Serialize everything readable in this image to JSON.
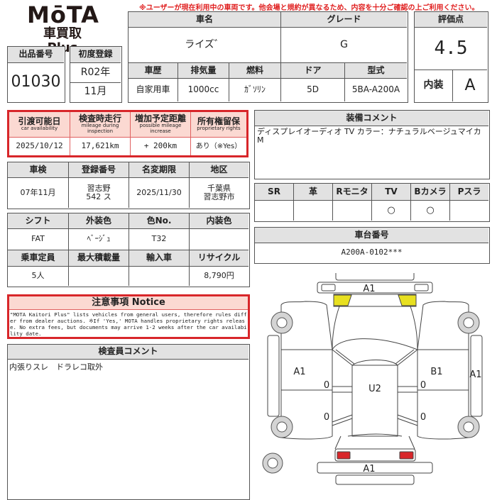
{
  "logo": {
    "brand": "MōTA",
    "sub": "車買取 Plus"
  },
  "warning": "※ユーザーが現在利用中の車両です。他会場と規約が異なるため、内容を十分ご確認の上ご利用ください。",
  "listing": {
    "label": "出品番号",
    "value": "01030"
  },
  "first_reg": {
    "label": "初度登録",
    "year": "R02年",
    "month": "11月"
  },
  "car": {
    "name_label": "車名",
    "name": "ライズ゛",
    "grade_label": "グレード",
    "grade": "G",
    "headers": [
      "車歴",
      "排気量",
      "燃料",
      "ドア",
      "型式"
    ],
    "values": [
      "自家用車",
      "1000cc",
      "ｶﾞｿﾘﾝ",
      "5D",
      "5BA-A200A"
    ]
  },
  "rating": {
    "label": "評価点",
    "score": "4.5",
    "interior_label": "内装",
    "interior": "A"
  },
  "availability": {
    "headers": [
      {
        "ja": "引渡可能日",
        "en": "car availability"
      },
      {
        "ja": "検査時走行",
        "en": "mileage during inspection"
      },
      {
        "ja": "増加予定距離",
        "en": "possible mileage increase"
      },
      {
        "ja": "所有権留保",
        "en": "proprietary rights"
      }
    ],
    "values": [
      "2025/10/12",
      "17,621km",
      "+ 200km",
      "あり（※Yes）"
    ]
  },
  "equipment": {
    "label": "装備コメント",
    "text": "ディスプレイオーディオ TV カラー：ナチュラルベージュマイカM"
  },
  "inspection": {
    "headers": [
      "車検",
      "登録番号",
      "名変期限",
      "地区"
    ],
    "values": [
      "07年11月",
      "習志野\n542 ス",
      "2025/11/30",
      "千葉県\n習志野市"
    ]
  },
  "options": {
    "headers": [
      "SR",
      "革",
      "Rモニタ",
      "TV",
      "Bカメラ",
      "Pスラ"
    ],
    "values": [
      "",
      "",
      "",
      "○",
      "○",
      ""
    ]
  },
  "chassis": {
    "label": "車台番号",
    "value": "A200A-0102***"
  },
  "specs": {
    "headers1": [
      "シフト",
      "外装色",
      "色No.",
      "内装色"
    ],
    "values1": [
      "FAT",
      "ﾍﾞｰｼﾞｭ",
      "T32",
      ""
    ],
    "headers2": [
      "乗車定員",
      "最大積載量",
      "輸入車",
      "リサイクル"
    ],
    "values2": [
      "5人",
      "",
      "",
      "8,790円"
    ]
  },
  "notice": {
    "label": "注意事項 Notice",
    "text": "\"MOTA Kaitori Plus\" lists vehicles from general users, therefore rules differ from dealer auctions. ※If 'Yes,' MOTA handles proprietary rights release. No extra fees, but documents may arrive 1-2 weeks after the car availability date."
  },
  "inspector": {
    "label": "検査員コメント",
    "text": "内張りスレ　ドラレコ取外"
  },
  "diagram": {
    "front_bumper": "A1",
    "left_side": "A1",
    "roof": "U2",
    "right_side": "B1",
    "right_step": "A1",
    "rear_bumper": "A1",
    "door_marks": [
      "0",
      "0",
      "0",
      "0"
    ],
    "colors": {
      "headlights": "#e8e020",
      "taillights": "#d8262a"
    }
  }
}
